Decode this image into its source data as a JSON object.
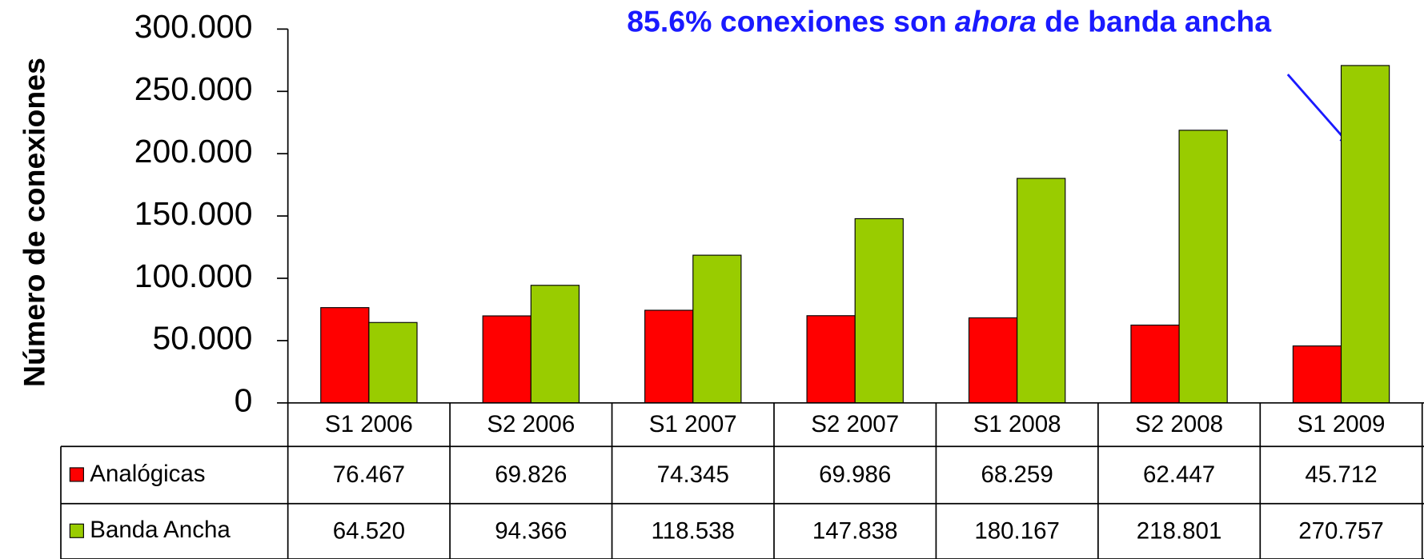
{
  "chart_data": {
    "type": "bar",
    "y_label": "Número de conexiones",
    "annotation": [
      "85.6% conexiones son",
      "ahora",
      "de banda ancha"
    ],
    "categories": [
      "S1 2006",
      "S2 2006",
      "S1 2007",
      "S2 2007",
      "S1 2008",
      "S2 2008",
      "S1 2009"
    ],
    "series": [
      {
        "name": "Analógicas",
        "color": "#ff0000",
        "values": [
          76467,
          69826,
          74345,
          69986,
          68259,
          62447,
          45712
        ],
        "value_labels": [
          "76.467",
          "69.826",
          "74.345",
          "69.986",
          "68.259",
          "62.447",
          "45.712"
        ]
      },
      {
        "name": "Banda Ancha",
        "color": "#99cc00",
        "values": [
          64520,
          94366,
          118538,
          147838,
          180167,
          218801,
          270757
        ],
        "value_labels": [
          "64.520",
          "94.366",
          "118.538",
          "147.838",
          "180.167",
          "218.801",
          "270.757"
        ]
      }
    ],
    "ylim": [
      0,
      300000
    ],
    "yticks": [
      0,
      {
        "value": 50000,
        "label": "50.000"
      },
      {
        "value": 100000,
        "label": "100.000"
      },
      {
        "value": 150000,
        "label": "150.000"
      },
      {
        "value": 200000,
        "label": "200.000"
      },
      {
        "value": 250000,
        "label": "250.000"
      },
      {
        "value": 300000,
        "label": "300.000"
      }
    ],
    "grid": false,
    "annotation_color": "#1a1aff"
  }
}
